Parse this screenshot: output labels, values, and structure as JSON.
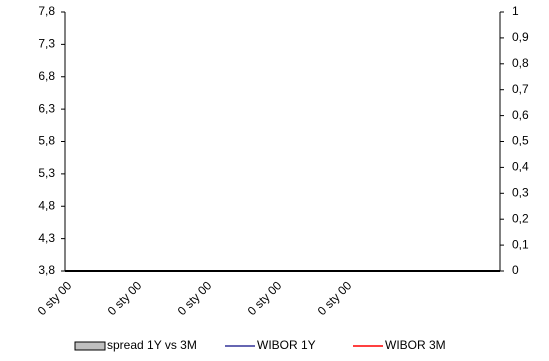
{
  "chart_data": {
    "type": "bar",
    "categories": [
      "0 sty 00",
      "0 sty 00",
      "0 sty 00",
      "0 sty 00",
      "0 sty 00"
    ],
    "series": [
      {
        "name": "spread 1Y vs 3M",
        "type": "bar",
        "color": "#c0c0c0",
        "axis": "y2",
        "values": [
          null,
          null,
          null,
          null,
          null
        ]
      },
      {
        "name": "WIBOR 1Y",
        "type": "line",
        "color": "#333399",
        "values": [
          null,
          null,
          null,
          null,
          null
        ]
      },
      {
        "name": "WIBOR 3M",
        "type": "line",
        "color": "#ff0000",
        "values": [
          null,
          null,
          null,
          null,
          null
        ]
      }
    ],
    "ylim": [
      3.8,
      7.8
    ],
    "yticks": [
      {
        "value": 3.8,
        "label": "3,8"
      },
      {
        "value": 4.3,
        "label": "4,3"
      },
      {
        "value": 4.8,
        "label": "4,8"
      },
      {
        "value": 5.3,
        "label": "5,3"
      },
      {
        "value": 5.8,
        "label": "5,8"
      },
      {
        "value": 6.3,
        "label": "6,3"
      },
      {
        "value": 6.8,
        "label": "6,8"
      },
      {
        "value": 7.3,
        "label": "7,3"
      },
      {
        "value": 7.8,
        "label": "7,8"
      }
    ],
    "y2lim": [
      0,
      1
    ],
    "y2ticks": [
      0,
      {
        "value": 0.1,
        "label": "0,1"
      },
      {
        "value": 0.2,
        "label": "0,2"
      },
      {
        "value": 0.3,
        "label": "0,3"
      },
      {
        "value": 0.4,
        "label": "0,4"
      },
      {
        "value": 0.5,
        "label": "0,5"
      },
      {
        "value": 0.6,
        "label": "0,6"
      },
      {
        "value": 0.7,
        "label": "0,7"
      },
      {
        "value": 0.8,
        "label": "0,8"
      },
      {
        "value": 0.9,
        "label": "0,9"
      },
      1
    ],
    "legend": "bottom",
    "grid": false
  }
}
